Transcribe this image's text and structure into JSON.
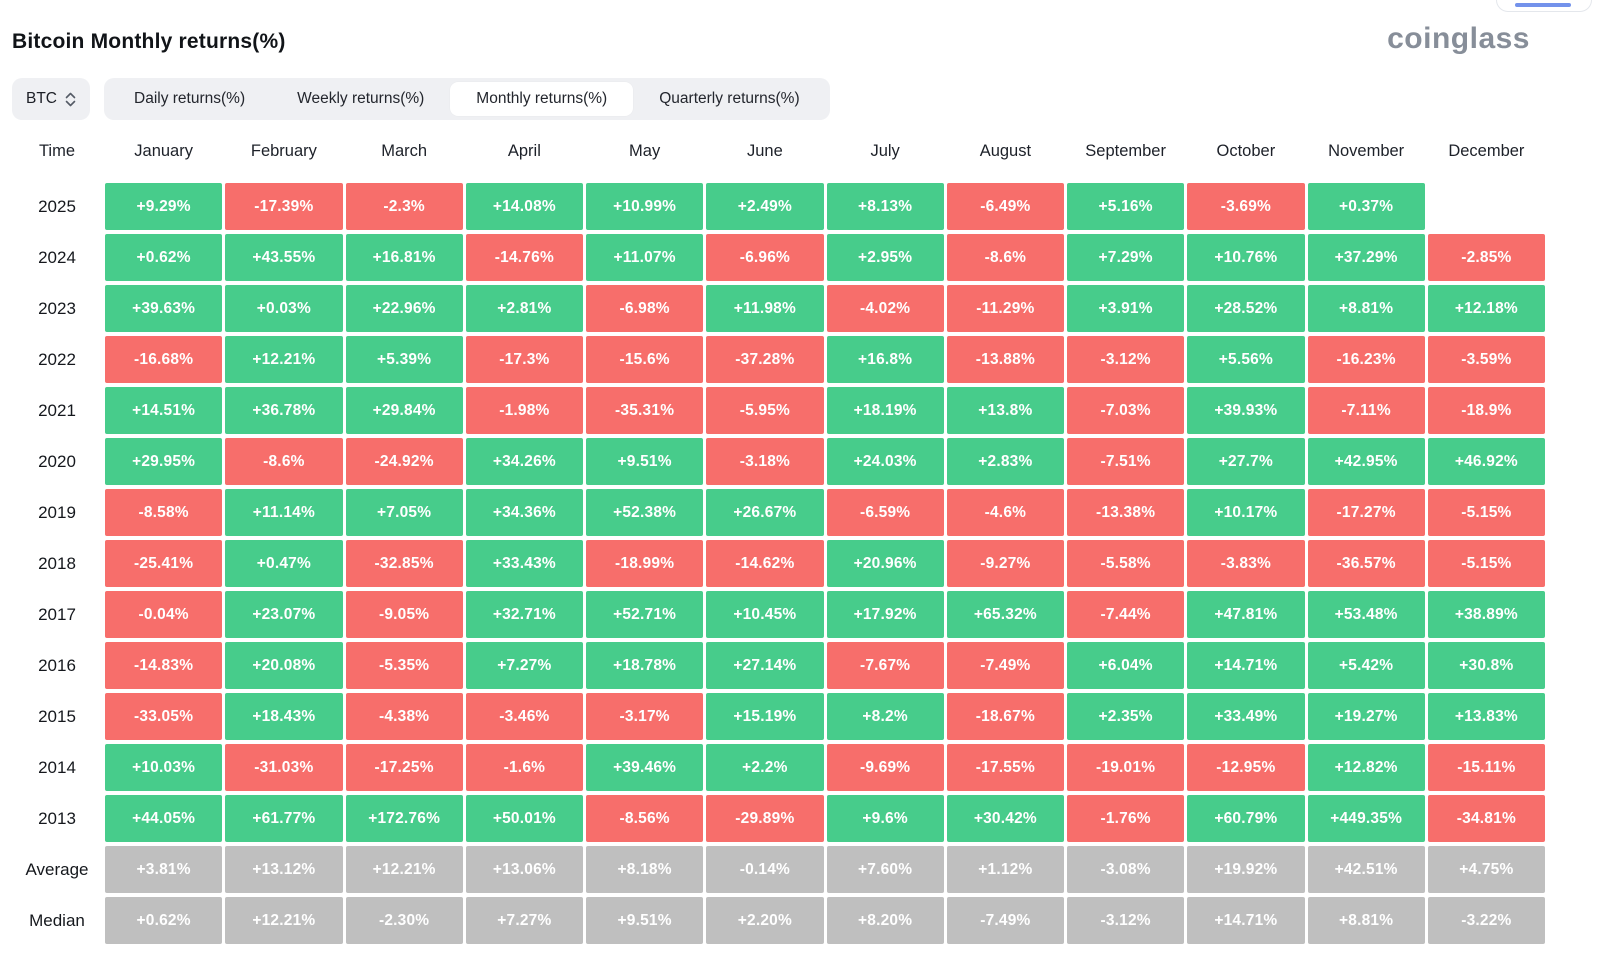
{
  "page": {
    "title": "Bitcoin Monthly returns(%)",
    "brand": "coinglass"
  },
  "controls": {
    "coin_selector": "BTC",
    "tabs": [
      {
        "label": "Daily returns(%)",
        "active": false
      },
      {
        "label": "Weekly returns(%)",
        "active": false
      },
      {
        "label": "Monthly returns(%)",
        "active": true
      },
      {
        "label": "Quarterly returns(%)",
        "active": false
      }
    ]
  },
  "chart_data": {
    "type": "heatmap",
    "title": "Bitcoin Monthly returns(%)",
    "columns": [
      "Time",
      "January",
      "February",
      "March",
      "April",
      "May",
      "June",
      "July",
      "August",
      "September",
      "October",
      "November",
      "December"
    ],
    "colors": {
      "positive": "#47cc8b",
      "negative": "#f76e6b",
      "summary": "#bfbfbf"
    },
    "rows": [
      {
        "label": "2025",
        "kind": "year",
        "values": [
          "+9.29%",
          "-17.39%",
          "-2.3%",
          "+14.08%",
          "+10.99%",
          "+2.49%",
          "+8.13%",
          "-6.49%",
          "+5.16%",
          "-3.69%",
          "+0.37%",
          null
        ]
      },
      {
        "label": "2024",
        "kind": "year",
        "values": [
          "+0.62%",
          "+43.55%",
          "+16.81%",
          "-14.76%",
          "+11.07%",
          "-6.96%",
          "+2.95%",
          "-8.6%",
          "+7.29%",
          "+10.76%",
          "+37.29%",
          "-2.85%"
        ]
      },
      {
        "label": "2023",
        "kind": "year",
        "values": [
          "+39.63%",
          "+0.03%",
          "+22.96%",
          "+2.81%",
          "-6.98%",
          "+11.98%",
          "-4.02%",
          "-11.29%",
          "+3.91%",
          "+28.52%",
          "+8.81%",
          "+12.18%"
        ]
      },
      {
        "label": "2022",
        "kind": "year",
        "values": [
          "-16.68%",
          "+12.21%",
          "+5.39%",
          "-17.3%",
          "-15.6%",
          "-37.28%",
          "+16.8%",
          "-13.88%",
          "-3.12%",
          "+5.56%",
          "-16.23%",
          "-3.59%"
        ]
      },
      {
        "label": "2021",
        "kind": "year",
        "values": [
          "+14.51%",
          "+36.78%",
          "+29.84%",
          "-1.98%",
          "-35.31%",
          "-5.95%",
          "+18.19%",
          "+13.8%",
          "-7.03%",
          "+39.93%",
          "-7.11%",
          "-18.9%"
        ]
      },
      {
        "label": "2020",
        "kind": "year",
        "values": [
          "+29.95%",
          "-8.6%",
          "-24.92%",
          "+34.26%",
          "+9.51%",
          "-3.18%",
          "+24.03%",
          "+2.83%",
          "-7.51%",
          "+27.7%",
          "+42.95%",
          "+46.92%"
        ]
      },
      {
        "label": "2019",
        "kind": "year",
        "values": [
          "-8.58%",
          "+11.14%",
          "+7.05%",
          "+34.36%",
          "+52.38%",
          "+26.67%",
          "-6.59%",
          "-4.6%",
          "-13.38%",
          "+10.17%",
          "-17.27%",
          "-5.15%"
        ]
      },
      {
        "label": "2018",
        "kind": "year",
        "values": [
          "-25.41%",
          "+0.47%",
          "-32.85%",
          "+33.43%",
          "-18.99%",
          "-14.62%",
          "+20.96%",
          "-9.27%",
          "-5.58%",
          "-3.83%",
          "-36.57%",
          "-5.15%"
        ]
      },
      {
        "label": "2017",
        "kind": "year",
        "values": [
          "-0.04%",
          "+23.07%",
          "-9.05%",
          "+32.71%",
          "+52.71%",
          "+10.45%",
          "+17.92%",
          "+65.32%",
          "-7.44%",
          "+47.81%",
          "+53.48%",
          "+38.89%"
        ]
      },
      {
        "label": "2016",
        "kind": "year",
        "values": [
          "-14.83%",
          "+20.08%",
          "-5.35%",
          "+7.27%",
          "+18.78%",
          "+27.14%",
          "-7.67%",
          "-7.49%",
          "+6.04%",
          "+14.71%",
          "+5.42%",
          "+30.8%"
        ]
      },
      {
        "label": "2015",
        "kind": "year",
        "values": [
          "-33.05%",
          "+18.43%",
          "-4.38%",
          "-3.46%",
          "-3.17%",
          "+15.19%",
          "+8.2%",
          "-18.67%",
          "+2.35%",
          "+33.49%",
          "+19.27%",
          "+13.83%"
        ]
      },
      {
        "label": "2014",
        "kind": "year",
        "values": [
          "+10.03%",
          "-31.03%",
          "-17.25%",
          "-1.6%",
          "+39.46%",
          "+2.2%",
          "-9.69%",
          "-17.55%",
          "-19.01%",
          "-12.95%",
          "+12.82%",
          "-15.11%"
        ]
      },
      {
        "label": "2013",
        "kind": "year",
        "values": [
          "+44.05%",
          "+61.77%",
          "+172.76%",
          "+50.01%",
          "-8.56%",
          "-29.89%",
          "+9.6%",
          "+30.42%",
          "-1.76%",
          "+60.79%",
          "+449.35%",
          "-34.81%"
        ]
      },
      {
        "label": "Average",
        "kind": "summary",
        "values": [
          "+3.81%",
          "+13.12%",
          "+12.21%",
          "+13.06%",
          "+8.18%",
          "-0.14%",
          "+7.60%",
          "+1.12%",
          "-3.08%",
          "+19.92%",
          "+42.51%",
          "+4.75%"
        ]
      },
      {
        "label": "Median",
        "kind": "summary",
        "values": [
          "+0.62%",
          "+12.21%",
          "-2.30%",
          "+7.27%",
          "+9.51%",
          "+2.20%",
          "+8.20%",
          "-7.49%",
          "-3.12%",
          "+14.71%",
          "+8.81%",
          "-3.22%"
        ]
      }
    ]
  }
}
